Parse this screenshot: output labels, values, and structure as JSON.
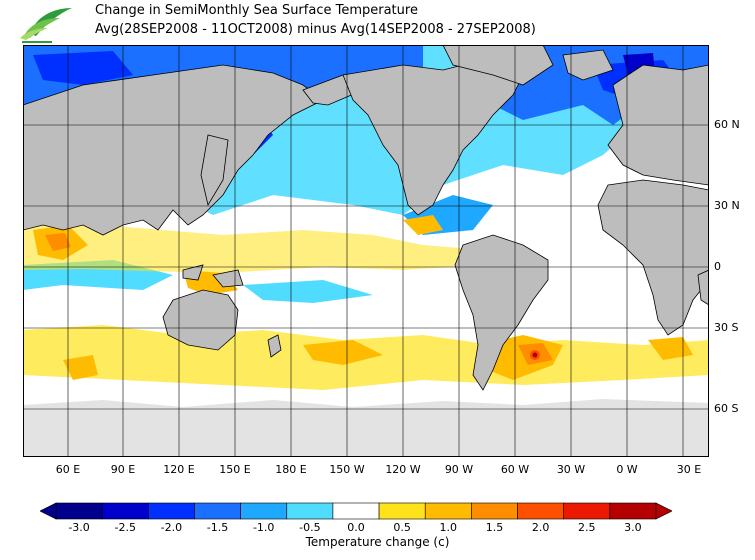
{
  "title_line1": "Change in SemiMonthly Sea Surface Temperature",
  "title_line2": "Avg(28SEP2008 - 11OCT2008) minus Avg(14SEP2008 - 27SEP2008)",
  "lat_labels": [
    "60 N",
    "30 N",
    "0",
    "30 S",
    "60 S"
  ],
  "lon_labels": [
    "60 E",
    "90 E",
    "120 E",
    "150 E",
    "180 E",
    "150 W",
    "120 W",
    "90 W",
    "60 W",
    "30 W",
    "0 W",
    "30 E"
  ],
  "legend": {
    "unit_label": "Temperature change  (c)",
    "ticks": [
      "-3.0",
      "-2.5",
      "-2.0",
      "-1.5",
      "-1.0",
      "-0.5",
      "0.0",
      "0.5",
      "1.0",
      "1.5",
      "2.0",
      "2.5",
      "3.0"
    ],
    "colors": [
      "#00008c",
      "#0000cc",
      "#0030ff",
      "#1c70ff",
      "#1ea8ff",
      "#50dcff",
      "#ffffff",
      "#ffe21a",
      "#ffbb00",
      "#ff8d00",
      "#ff5000",
      "#ec1800",
      "#b40000"
    ]
  },
  "colors": {
    "land": "#bdbdbd",
    "ice": "#e3e3e3",
    "ocean_neutral": "#ffffff"
  }
}
